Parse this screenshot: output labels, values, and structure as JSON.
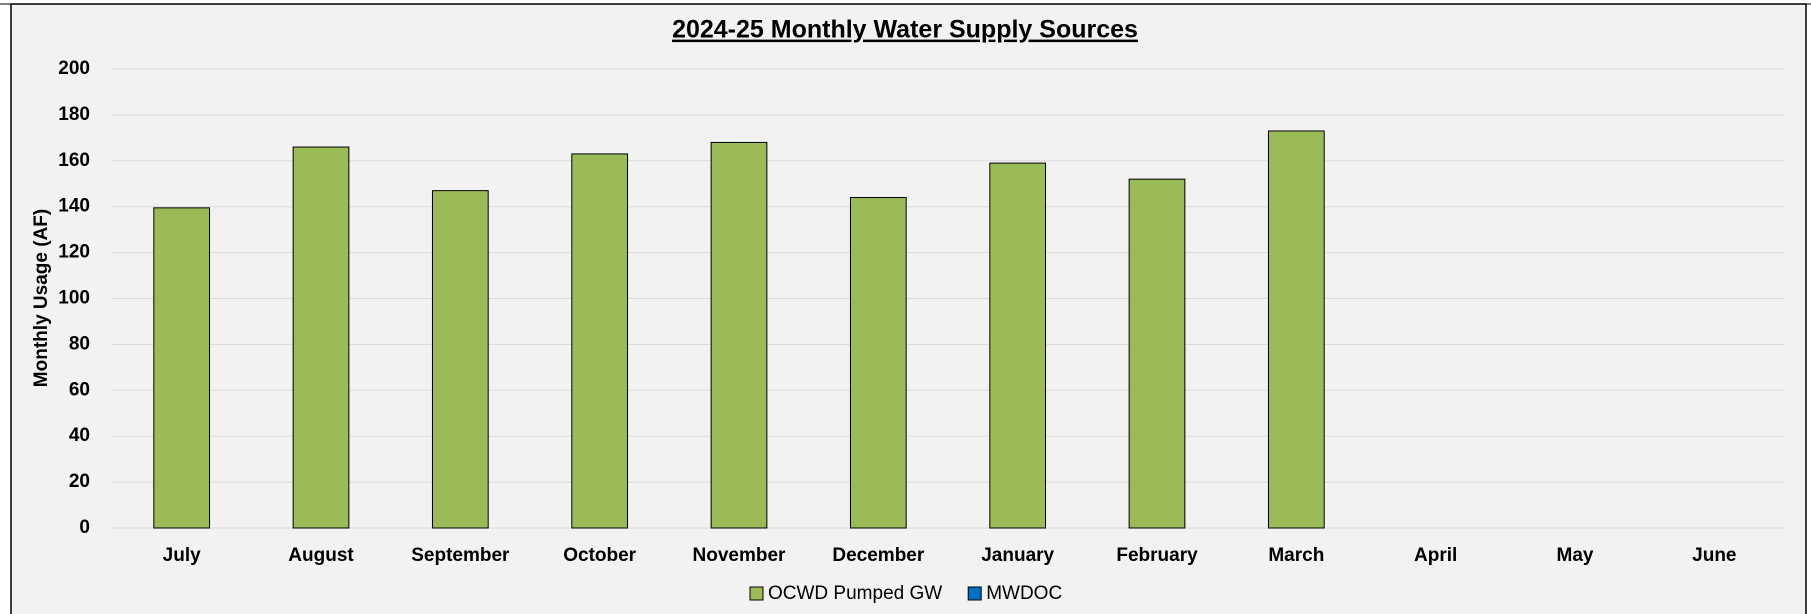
{
  "chart_data": {
    "type": "bar",
    "stacked": true,
    "title": "2024-25 Monthly Water Supply Sources",
    "y_label": "Monthly Usage (AF)",
    "categories": [
      "July",
      "August",
      "September",
      "October",
      "November",
      "December",
      "January",
      "February",
      "March",
      "April",
      "May",
      "June"
    ],
    "series": [
      {
        "name": "OCWD Pumped GW",
        "color": "#9bbb59",
        "values": [
          139.5,
          166,
          147,
          163,
          168,
          144,
          159,
          152,
          173,
          null,
          null,
          null
        ]
      },
      {
        "name": "MWDOC",
        "color": "#0070c0",
        "values": [
          0,
          0,
          0,
          0,
          0,
          0,
          0,
          0,
          0,
          null,
          null,
          null
        ]
      }
    ],
    "ylim": [
      0,
      200
    ],
    "yticks": [
      0,
      20,
      40,
      60,
      80,
      100,
      120,
      140,
      160,
      180,
      200
    ],
    "grid": true,
    "legend": "bottom"
  }
}
